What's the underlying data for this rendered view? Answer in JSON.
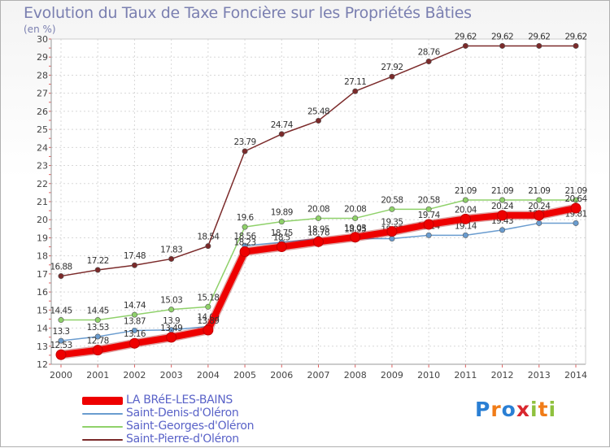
{
  "header": {
    "title": "Evolution du Taux de Taxe Foncière sur les Propriétés Bâties",
    "unit": "(en %)"
  },
  "logo": {
    "text": "Proxiti",
    "colors": [
      "#2a7fd4",
      "#f07c18",
      "#2a7fd4",
      "#d9272e",
      "#8fc13e",
      "#f07c18",
      "#8fc13e"
    ]
  },
  "chart_data": {
    "type": "line",
    "title": "Evolution du Taux de Taxe Foncière sur les Propriétés Bâties",
    "ylabel": "(en %)",
    "xlabel": "",
    "ylim": [
      12,
      30
    ],
    "yticks": [
      12,
      13,
      14,
      15,
      16,
      17,
      18,
      19,
      20,
      21,
      22,
      23,
      24,
      25,
      26,
      27,
      28,
      29,
      30
    ],
    "categories": [
      "2000",
      "2001",
      "2002",
      "2003",
      "2004",
      "2005",
      "2006",
      "2007",
      "2008",
      "2009",
      "2010",
      "2011",
      "2012",
      "2013",
      "2014"
    ],
    "grid": true,
    "series": [
      {
        "name": "Saint-Pierre-d'Oléron",
        "color": "#7b2a2a",
        "values": [
          16.88,
          17.22,
          17.48,
          17.83,
          18.54,
          23.79,
          24.74,
          25.48,
          27.11,
          27.92,
          28.76,
          29.62,
          29.62,
          29.62,
          29.62
        ],
        "labels": [
          "16.88",
          "17.22",
          "17.48",
          "17.83",
          "18.54",
          "23.79",
          "24.74",
          "25.48",
          "27.11",
          "27.92",
          "28.76",
          "29.62",
          "29.62",
          "29.62",
          "29.62"
        ]
      },
      {
        "name": "Saint-Georges-d'Oléron",
        "color": "#8fd16a",
        "values": [
          14.45,
          14.45,
          14.74,
          15.03,
          15.18,
          19.6,
          19.89,
          20.08,
          20.08,
          20.58,
          20.58,
          21.09,
          21.09,
          21.09,
          21.09
        ],
        "labels": [
          "14.45",
          "14.45",
          "14.74",
          "15.03",
          "15.18",
          "19.6",
          "19.89",
          "20.08",
          "20.08",
          "20.58",
          "20.58",
          "21.09",
          "21.09",
          "21.09",
          "21.09"
        ]
      },
      {
        "name": "Saint-Denis-d'Oléron",
        "color": "#6a9ccf",
        "values": [
          13.3,
          13.53,
          13.87,
          13.9,
          14.09,
          18.56,
          18.75,
          18.95,
          18.95,
          18.95,
          19.14,
          19.14,
          19.43,
          19.81,
          19.81
        ],
        "labels": [
          "13.3",
          "13.53",
          "13.87",
          "13.9",
          "14.09",
          "18.56",
          "18.75",
          "18.95",
          "18.95",
          "18.95",
          "19.14",
          "19.14",
          "19.43",
          "19.81",
          "19.81"
        ]
      },
      {
        "name": "LA BRéE-LES-BAINS",
        "color": "#ee0000",
        "values": [
          12.53,
          12.78,
          13.16,
          13.49,
          13.89,
          18.23,
          18.5,
          18.78,
          19.03,
          19.35,
          19.74,
          20.04,
          20.24,
          20.24,
          20.64
        ],
        "labels": [
          "12.53",
          "12.78",
          "13.16",
          "13.49",
          "13.89",
          "18.23",
          "18.5",
          "18.78",
          "19.03",
          "19.35",
          "19.74",
          "20.04",
          "20.24",
          "20.24",
          "20.64"
        ]
      }
    ]
  },
  "legend": {
    "items": [
      {
        "label": "LA BRéE-LES-BAINS",
        "color": "#ee0000"
      },
      {
        "label": "Saint-Denis-d'Oléron",
        "color": "#6a9ccf"
      },
      {
        "label": "Saint-Georges-d'Oléron",
        "color": "#8fd16a"
      },
      {
        "label": "Saint-Pierre-d'Oléron",
        "color": "#7b2a2a"
      }
    ]
  }
}
